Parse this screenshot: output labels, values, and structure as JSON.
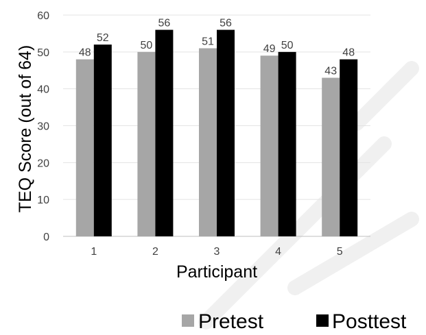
{
  "chart_data": {
    "type": "bar",
    "title": "",
    "xlabel": "Participant",
    "ylabel": "TEQ Score (out of 64)",
    "ylim": [
      0,
      60
    ],
    "yticks": [
      0,
      10,
      20,
      30,
      40,
      50,
      60
    ],
    "categories": [
      "1",
      "2",
      "3",
      "4",
      "5"
    ],
    "series": [
      {
        "name": "Pretest",
        "values": [
          48,
          50,
          51,
          49,
          43
        ],
        "color": "#a6a6a6"
      },
      {
        "name": "Posttest",
        "values": [
          52,
          56,
          56,
          50,
          48
        ],
        "color": "#000000"
      }
    ],
    "grid": true,
    "legend_position": "bottom-right",
    "data_labels": true
  }
}
